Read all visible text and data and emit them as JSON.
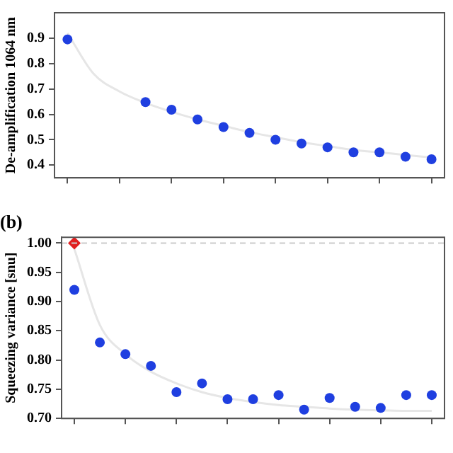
{
  "chart_data": [
    {
      "type": "scatter",
      "ylabel": "De-amplification 1064 nm",
      "categories": [
        null,
        null,
        null,
        null,
        null,
        null,
        null,
        null,
        null,
        null,
        null,
        null,
        null,
        null,
        null
      ],
      "ylim": [
        0.35,
        1.0
      ],
      "yticks": [
        0.4,
        0.5,
        0.6,
        0.7,
        0.8,
        0.9
      ],
      "grid": false,
      "legend": false,
      "series": [
        {
          "type": "line",
          "color": "#e6e6e6",
          "marker": "none",
          "values": [
            0.92,
            0.76,
            0.69,
            0.645,
            0.61,
            0.58,
            0.555,
            0.53,
            0.51,
            0.49,
            0.475,
            0.46,
            0.45,
            0.44,
            0.43
          ]
        },
        {
          "type": "scatter",
          "color": "#1f3fe0",
          "marker": "circle",
          "values": [
            0.895,
            null,
            null,
            0.648,
            0.618,
            0.58,
            0.55,
            0.527,
            0.5,
            0.485,
            0.47,
            0.45,
            0.45,
            0.433,
            0.423
          ]
        }
      ]
    },
    {
      "type": "scatter",
      "title": "(b)",
      "ylabel": "Squeezing variance [snu]",
      "categories": [
        null,
        null,
        null,
        null,
        null,
        null,
        null,
        null,
        null,
        null,
        null,
        null,
        null,
        null,
        null
      ],
      "ylim": [
        0.7,
        1.01
      ],
      "yticks": [
        {
          "value": 0.7,
          "label": "0.70"
        },
        {
          "value": 0.75,
          "label": "0.75"
        },
        {
          "value": 0.8,
          "label": "0.80"
        },
        {
          "value": 0.85,
          "label": "0.85"
        },
        {
          "value": 0.9,
          "label": "0.90"
        },
        {
          "value": 0.95,
          "label": "0.95"
        },
        {
          "value": 1.0,
          "label": "1.00"
        }
      ],
      "grid": false,
      "legend": false,
      "ref_lines": [
        {
          "axis": "y",
          "value": 1.0,
          "color": "#cccccc",
          "line_style": "dashed"
        }
      ],
      "series": [
        {
          "type": "line",
          "color": "#e6e6e6",
          "marker": "none",
          "values": [
            0.99,
            0.86,
            0.81,
            0.78,
            0.76,
            0.745,
            0.735,
            0.728,
            0.723,
            0.72,
            0.717,
            0.715,
            0.714,
            0.713,
            0.713
          ]
        },
        {
          "type": "scatter",
          "color": "#1f3fe0",
          "marker": "circle",
          "values": [
            0.92,
            0.83,
            0.81,
            0.79,
            0.745,
            0.76,
            0.733,
            0.733,
            0.74,
            0.715,
            0.735,
            0.72,
            0.718,
            0.74,
            0.74
          ]
        },
        {
          "type": "scatter",
          "color": "#e02020",
          "marker": "diamond",
          "values": [
            1.0,
            null,
            null,
            null,
            null,
            null,
            null,
            null,
            null,
            null,
            null,
            null,
            null,
            null,
            null
          ]
        }
      ]
    }
  ]
}
